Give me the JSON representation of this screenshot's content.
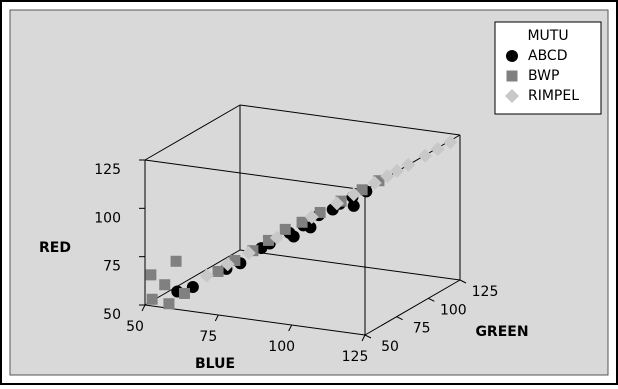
{
  "chart_data": {
    "type": "scatter3d",
    "xlabel": "BLUE",
    "ylabel": "GREEN",
    "zlabel": "RED",
    "xlim": [
      50,
      125
    ],
    "ylim": [
      50,
      125
    ],
    "zlim": [
      50,
      125
    ],
    "xticks": [
      50,
      75,
      100,
      125
    ],
    "yticks": [
      50,
      75,
      100,
      125
    ],
    "zticks": [
      50,
      75,
      100,
      125
    ],
    "legend_title": "MUTU",
    "legend": "top-right",
    "series": [
      {
        "name": "ABCD",
        "color": "#000000",
        "marker": "circle",
        "x": [
          58,
          62,
          70,
          73,
          78,
          80,
          85,
          86,
          88,
          90,
          92,
          95,
          97,
          100,
          100,
          103
        ],
        "y": [
          57,
          60,
          68,
          72,
          77,
          79,
          83,
          84,
          87,
          88,
          90,
          94,
          95,
          98,
          99,
          102
        ],
        "z": [
          56,
          58,
          66,
          68,
          75,
          77,
          82,
          80,
          85,
          84,
          90,
          92,
          95,
          98,
          93,
          100
        ]
      },
      {
        "name": "BWP",
        "color": "#808080",
        "marker": "square",
        "x": [
          52,
          55,
          56,
          60,
          52,
          58,
          68,
          72,
          76,
          80,
          84,
          88,
          92,
          97,
          102,
          106
        ],
        "y": [
          51,
          54,
          55,
          58,
          50,
          56,
          66,
          70,
          75,
          78,
          82,
          86,
          91,
          96,
          101,
          105
        ],
        "z": [
          53,
          60,
          50,
          55,
          66,
          72,
          65,
          70,
          74,
          79,
          84,
          87,
          91,
          96,
          101,
          105
        ]
      },
      {
        "name": "RIMPEL",
        "color": "#c8c8c8",
        "marker": "diamond",
        "x": [
          65,
          70,
          75,
          82,
          90,
          96,
          100,
          105,
          108,
          110,
          113,
          117,
          120,
          123
        ],
        "y": [
          64,
          69,
          74,
          80,
          89,
          95,
          99,
          104,
          107,
          110,
          112,
          116,
          119,
          122
        ],
        "z": [
          63,
          68,
          73,
          80,
          89,
          95,
          99,
          104,
          107,
          109,
          112,
          116,
          119,
          122
        ]
      }
    ]
  }
}
